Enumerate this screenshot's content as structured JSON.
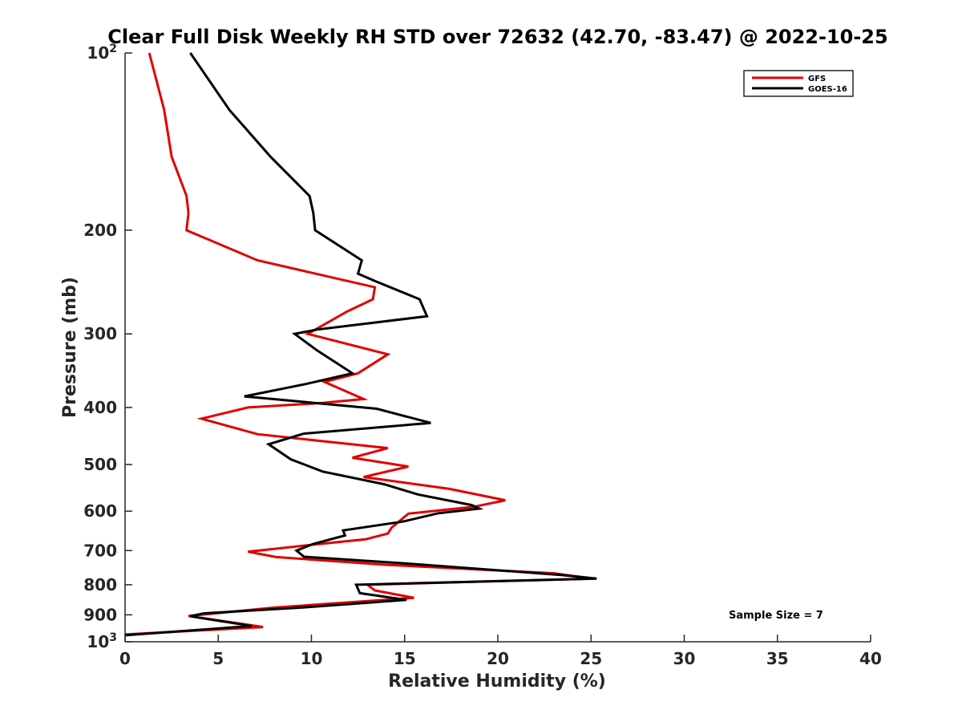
{
  "chart_data": {
    "type": "line",
    "title": "Clear Full Disk Weekly RH STD over 72632 (42.70, -83.47) @ 2022-10-25",
    "xlabel": "Relative Humidity (%)",
    "ylabel": "Pressure (mb)",
    "xlim": [
      0,
      40
    ],
    "ylim": [
      100,
      1000
    ],
    "y_scale": "log",
    "y_reversed": true,
    "x_ticks": [
      "0",
      "5",
      "10",
      "15",
      "20",
      "25",
      "30",
      "35",
      "40"
    ],
    "x_tick_values": [
      0,
      5,
      10,
      15,
      20,
      25,
      30,
      35,
      40
    ],
    "y_ticks": [
      {
        "value": 100,
        "base": "10",
        "exp": "2"
      },
      {
        "value": 200,
        "label": "200"
      },
      {
        "value": 300,
        "label": "300"
      },
      {
        "value": 400,
        "label": "400"
      },
      {
        "value": 500,
        "label": "500"
      },
      {
        "value": 600,
        "label": "600"
      },
      {
        "value": 700,
        "label": "700"
      },
      {
        "value": 800,
        "label": "800"
      },
      {
        "value": 900,
        "label": "900"
      },
      {
        "value": 1000,
        "base": "10",
        "exp": "3"
      }
    ],
    "grid": false,
    "legend_position": "top-right",
    "annotation": "Sample Size = 7",
    "series": [
      {
        "name": "GFS",
        "color": "#e00000",
        "points": [
          [
            1.3,
            100
          ],
          [
            2.1,
            125
          ],
          [
            2.5,
            150
          ],
          [
            3.3,
            175
          ],
          [
            3.4,
            187
          ],
          [
            3.3,
            200
          ],
          [
            7.1,
            225
          ],
          [
            13.4,
            250
          ],
          [
            13.3,
            262
          ],
          [
            11.9,
            275
          ],
          [
            9.8,
            300
          ],
          [
            14.1,
            325
          ],
          [
            12.5,
            350
          ],
          [
            10.7,
            362
          ],
          [
            12.8,
            387
          ],
          [
            10.6,
            393
          ],
          [
            6.6,
            400
          ],
          [
            4.1,
            418
          ],
          [
            7.1,
            444
          ],
          [
            14.1,
            469
          ],
          [
            12.2,
            487
          ],
          [
            15.2,
            504
          ],
          [
            12.8,
            525
          ],
          [
            17.4,
            550
          ],
          [
            20.4,
            575
          ],
          [
            18.7,
            590
          ],
          [
            15.2,
            606
          ],
          [
            14.3,
            640
          ],
          [
            14.1,
            655
          ],
          [
            12.9,
            670
          ],
          [
            10.1,
            684
          ],
          [
            6.6,
            703
          ],
          [
            8.1,
            718
          ],
          [
            14.0,
            740
          ],
          [
            23.0,
            765
          ],
          [
            24.0,
            773
          ],
          [
            25.1,
            781
          ],
          [
            13.0,
            800
          ],
          [
            13.4,
            818
          ],
          [
            15.5,
            842
          ],
          [
            8.0,
            875
          ],
          [
            3.4,
            904
          ],
          [
            7.4,
            944
          ],
          [
            0.0,
            972
          ]
        ]
      },
      {
        "name": "GOES-16",
        "color": "#000000",
        "points": [
          [
            3.5,
            100
          ],
          [
            5.6,
            125
          ],
          [
            7.8,
            150
          ],
          [
            9.9,
            175
          ],
          [
            10.1,
            187
          ],
          [
            10.2,
            200
          ],
          [
            12.7,
            225
          ],
          [
            12.5,
            237
          ],
          [
            13.4,
            244
          ],
          [
            15.8,
            262
          ],
          [
            16.2,
            280
          ],
          [
            10.3,
            295
          ],
          [
            9.1,
            300
          ],
          [
            10.3,
            320
          ],
          [
            12.2,
            350
          ],
          [
            9.7,
            365
          ],
          [
            6.4,
            383
          ],
          [
            13.5,
            402
          ],
          [
            16.4,
            425
          ],
          [
            9.6,
            443
          ],
          [
            7.7,
            462
          ],
          [
            8.9,
            490
          ],
          [
            10.6,
            514
          ],
          [
            13.9,
            540
          ],
          [
            15.7,
            562
          ],
          [
            18.6,
            586
          ],
          [
            19.0,
            594
          ],
          [
            16.8,
            605
          ],
          [
            14.9,
            625
          ],
          [
            11.7,
            647
          ],
          [
            11.8,
            660
          ],
          [
            10.1,
            682
          ],
          [
            9.2,
            700
          ],
          [
            9.6,
            717
          ],
          [
            15.0,
            736
          ],
          [
            23.4,
            770
          ],
          [
            25.3,
            781
          ],
          [
            12.4,
            800
          ],
          [
            12.6,
            827
          ],
          [
            15.1,
            849
          ],
          [
            9.6,
            874
          ],
          [
            4.2,
            895
          ],
          [
            3.5,
            905
          ],
          [
            6.8,
            940
          ],
          [
            0.0,
            975
          ]
        ]
      }
    ]
  }
}
